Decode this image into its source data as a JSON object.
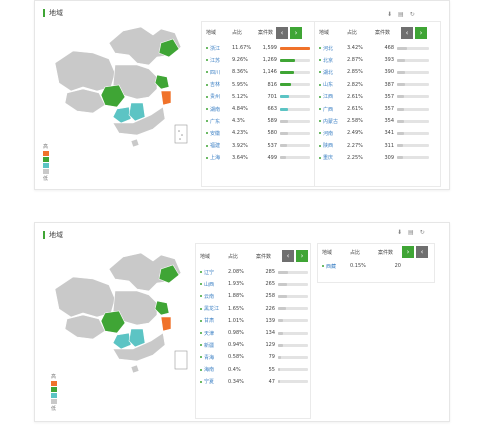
{
  "header_label": "地域",
  "columns": {
    "region": "地域",
    "share": "占比",
    "count": "案件数"
  },
  "legend": {
    "high": "高",
    "low": "低"
  },
  "nav": {
    "prev": "‹",
    "next": "›"
  },
  "colors": {
    "accent": "#3fa535",
    "high": "#f0722a",
    "mid": "#3fa535",
    "teal": "#5cc4c4",
    "low": "#c9c9c9"
  },
  "top_left_rows": [
    {
      "name": "浙江",
      "share": "11.67%",
      "count": "1,599",
      "level": 1.0,
      "color": "#f0722a"
    },
    {
      "name": "江苏",
      "share": "9.26%",
      "count": "1,269",
      "level": 0.5,
      "color": "#3fa535"
    },
    {
      "name": "四川",
      "share": "8.36%",
      "count": "1,146",
      "level": 0.48,
      "color": "#3fa535"
    },
    {
      "name": "吉林",
      "share": "5.95%",
      "count": "816",
      "level": 0.36,
      "color": "#3fa535"
    },
    {
      "name": "贵州",
      "share": "5.12%",
      "count": "701",
      "level": 0.3,
      "color": "#5cc4c4"
    },
    {
      "name": "湖南",
      "share": "4.84%",
      "count": "663",
      "level": 0.28,
      "color": "#5cc4c4"
    },
    {
      "name": "广东",
      "share": "4.3%",
      "count": "589",
      "level": 0.25,
      "color": "#c9c9c9"
    },
    {
      "name": "安徽",
      "share": "4.23%",
      "count": "580",
      "level": 0.25,
      "color": "#c9c9c9"
    },
    {
      "name": "福建",
      "share": "3.92%",
      "count": "537",
      "level": 0.23,
      "color": "#c9c9c9"
    },
    {
      "name": "上海",
      "share": "3.64%",
      "count": "499",
      "level": 0.21,
      "color": "#c9c9c9"
    }
  ],
  "top_right_rows": [
    {
      "name": "河北",
      "share": "3.42%",
      "count": "468",
      "level": 0.3
    },
    {
      "name": "北京",
      "share": "2.87%",
      "count": "393",
      "level": 0.25
    },
    {
      "name": "湖北",
      "share": "2.85%",
      "count": "390",
      "level": 0.25
    },
    {
      "name": "山东",
      "share": "2.82%",
      "count": "387",
      "level": 0.25
    },
    {
      "name": "江西",
      "share": "2.61%",
      "count": "357",
      "level": 0.23
    },
    {
      "name": "广西",
      "share": "2.61%",
      "count": "357",
      "level": 0.23
    },
    {
      "name": "内蒙古",
      "share": "2.58%",
      "count": "354",
      "level": 0.23
    },
    {
      "name": "河南",
      "share": "2.49%",
      "count": "341",
      "level": 0.22
    },
    {
      "name": "陕西",
      "share": "2.27%",
      "count": "311",
      "level": 0.2
    },
    {
      "name": "重庆",
      "share": "2.25%",
      "count": "309",
      "level": 0.2
    }
  ],
  "bottom_left_rows": [
    {
      "name": "辽宁",
      "share": "2.08%",
      "count": "285",
      "level": 0.32
    },
    {
      "name": "山西",
      "share": "1.93%",
      "count": "265",
      "level": 0.3
    },
    {
      "name": "云南",
      "share": "1.88%",
      "count": "258",
      "level": 0.29
    },
    {
      "name": "黑龙江",
      "share": "1.65%",
      "count": "226",
      "level": 0.26
    },
    {
      "name": "甘肃",
      "share": "1.01%",
      "count": "139",
      "level": 0.16
    },
    {
      "name": "天津",
      "share": "0.98%",
      "count": "134",
      "level": 0.15
    },
    {
      "name": "新疆",
      "share": "0.94%",
      "count": "129",
      "level": 0.15
    },
    {
      "name": "青海",
      "share": "0.58%",
      "count": "79",
      "level": 0.09
    },
    {
      "name": "海南",
      "share": "0.4%",
      "count": "55",
      "level": 0.06
    },
    {
      "name": "宁夏",
      "share": "0.34%",
      "count": "47",
      "level": 0.05
    }
  ],
  "bottom_right_rows": [
    {
      "name": "西藏",
      "share": "0.15%",
      "count": "20"
    }
  ]
}
